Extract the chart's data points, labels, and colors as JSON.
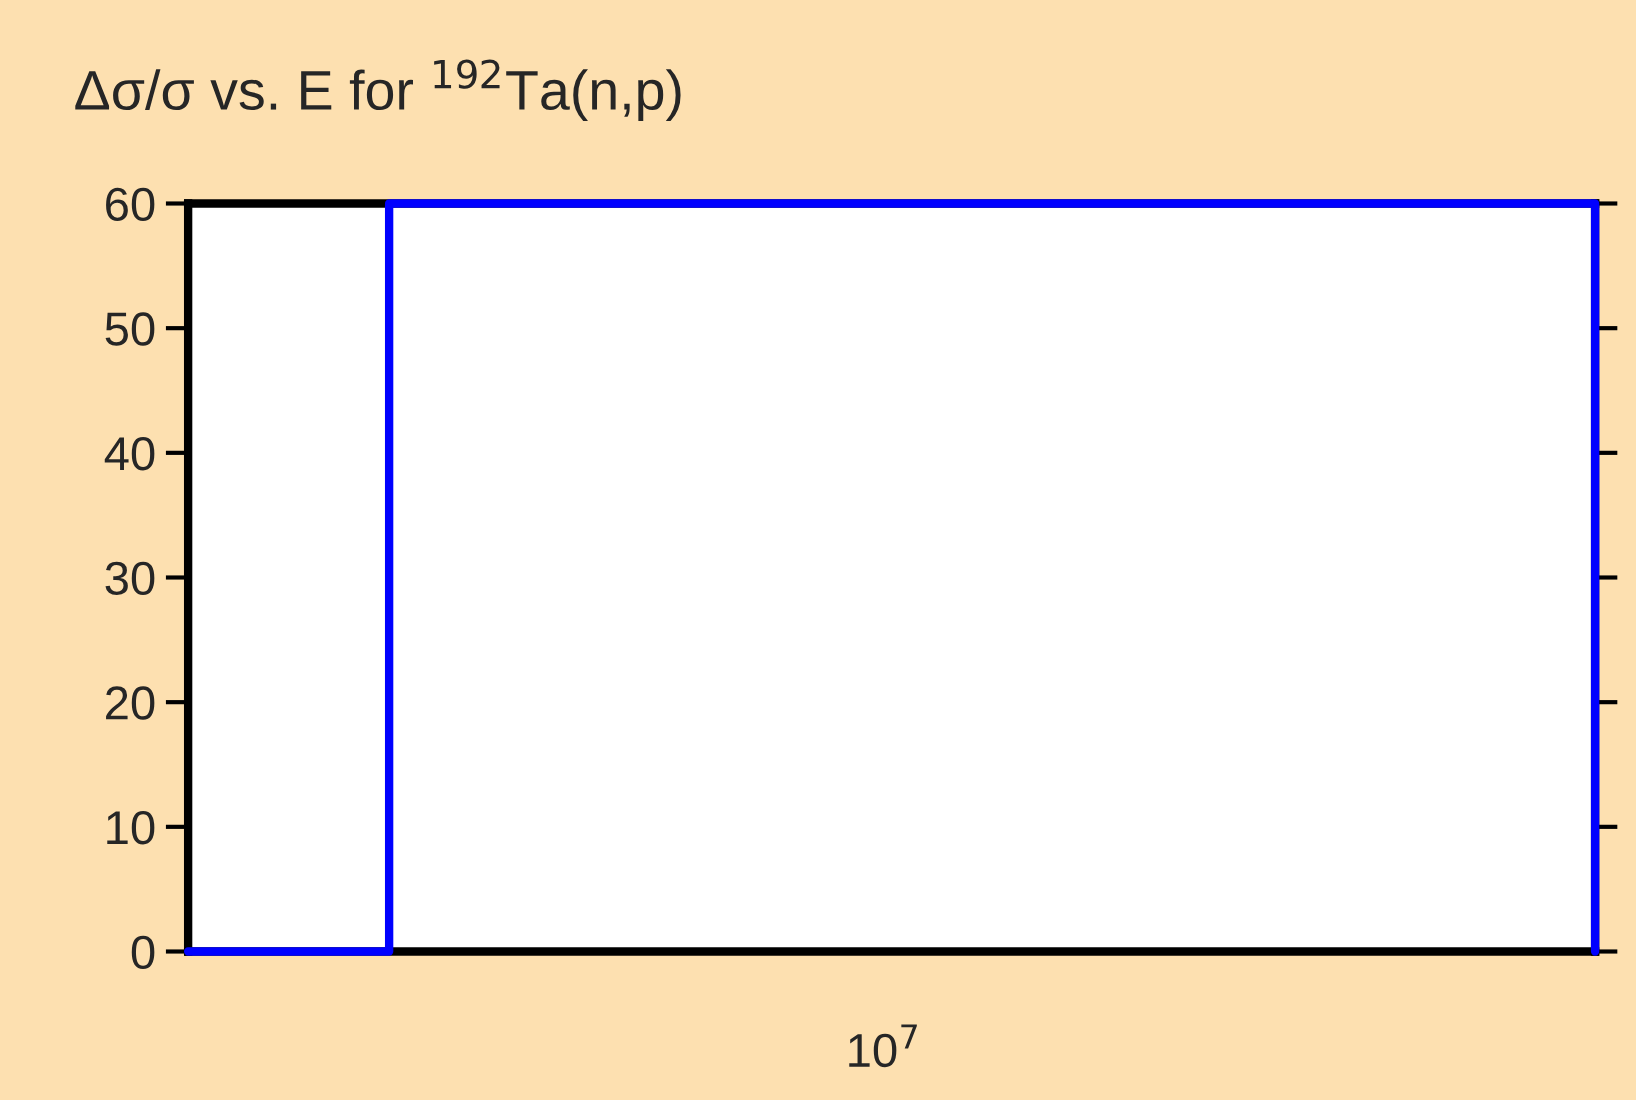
{
  "chart_data": {
    "type": "step",
    "title": "Δσ/σ vs. E for $^{192}$Ta(n,p)",
    "categories": [
      null,
      null,
      null,
      null,
      null,
      null,
      null,
      null
    ],
    "series": [
      {
        "color": "#0000ff",
        "values": [
          0,
          60,
          60,
          60,
          60,
          60,
          60,
          0
        ]
      }
    ],
    "ylim": [
      0,
      60
    ],
    "annotations": [
      "10$^{7}$"
    ],
    "yticks": [
      0,
      10,
      20,
      30,
      40,
      50,
      60
    ],
    "grid": false,
    "legend": false,
    "line_style": "solid"
  }
}
